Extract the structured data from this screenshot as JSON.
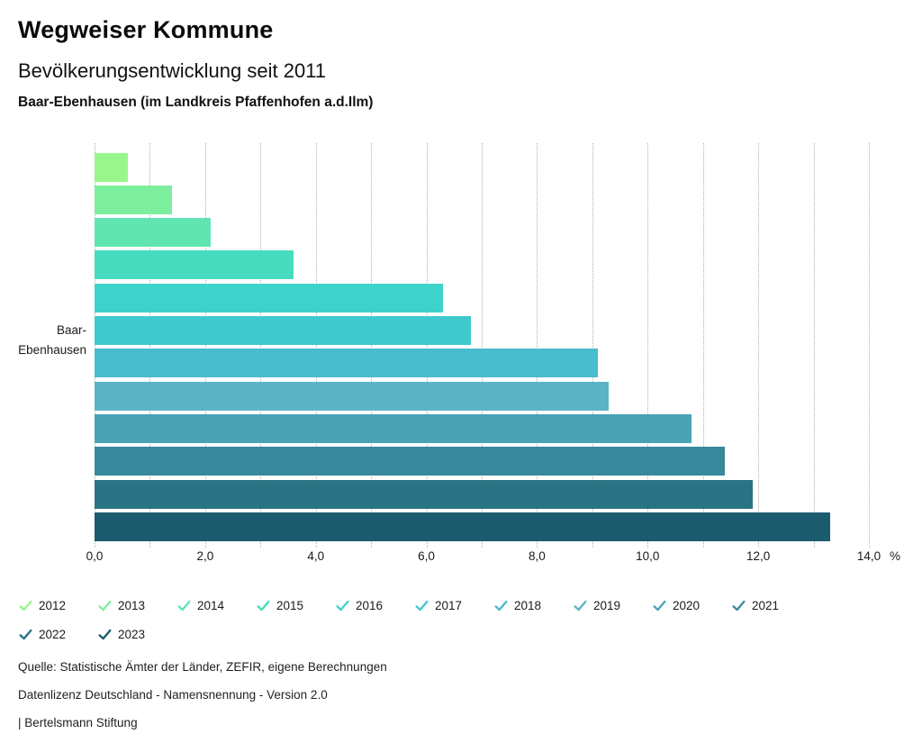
{
  "header": {
    "title": "Wegweiser Kommune",
    "subtitle": "Bevölkerungsentwicklung seit 2011",
    "region": "Baar-Ebenhausen (im Landkreis Pfaffenhofen a.d.Ilm)"
  },
  "chart_data": {
    "type": "bar",
    "orientation": "horizontal",
    "title": "Bevölkerungsentwicklung seit 2011",
    "subtitle": "Baar-Ebenhausen (im Landkreis Pfaffenhofen a.d.Ilm)",
    "category": "Baar-Ebenhausen",
    "category_label_lines": [
      "Baar-",
      "Ebenhausen"
    ],
    "unit": "%",
    "xlim": [
      0,
      14
    ],
    "x_major_ticks": [
      0,
      2,
      4,
      6,
      8,
      10,
      12,
      14
    ],
    "x_major_tick_labels": [
      "0,0",
      "2,0",
      "4,0",
      "6,0",
      "8,0",
      "10,0",
      "12,0",
      "14,0"
    ],
    "x_minor_tick_step": 1,
    "grid": "vertical-dotted",
    "legend_position": "bottom",
    "series": [
      {
        "year": "2012",
        "value": 0.6,
        "color": "#98f68c"
      },
      {
        "year": "2013",
        "value": 1.4,
        "color": "#7cee9e"
      },
      {
        "year": "2014",
        "value": 2.1,
        "color": "#60e5b1"
      },
      {
        "year": "2015",
        "value": 3.6,
        "color": "#47dcbe"
      },
      {
        "year": "2016",
        "value": 6.3,
        "color": "#3ed3ca"
      },
      {
        "year": "2017",
        "value": 6.8,
        "color": "#3fc9cd"
      },
      {
        "year": "2018",
        "value": 9.1,
        "color": "#49bccd"
      },
      {
        "year": "2019",
        "value": 9.3,
        "color": "#5ab4c6"
      },
      {
        "year": "2020",
        "value": 10.8,
        "color": "#4aa2b5"
      },
      {
        "year": "2021",
        "value": 11.4,
        "color": "#38899b"
      },
      {
        "year": "2022",
        "value": 11.9,
        "color": "#297384"
      },
      {
        "year": "2023",
        "value": 13.3,
        "color": "#1a5b6e"
      }
    ]
  },
  "footer": {
    "lines": [
      "Quelle: Statistische Ämter der Länder, ZEFIR, eigene Berechnungen",
      "Datenlizenz Deutschland - Namensnennung - Version 2.0",
      "| Bertelsmann Stiftung"
    ]
  }
}
